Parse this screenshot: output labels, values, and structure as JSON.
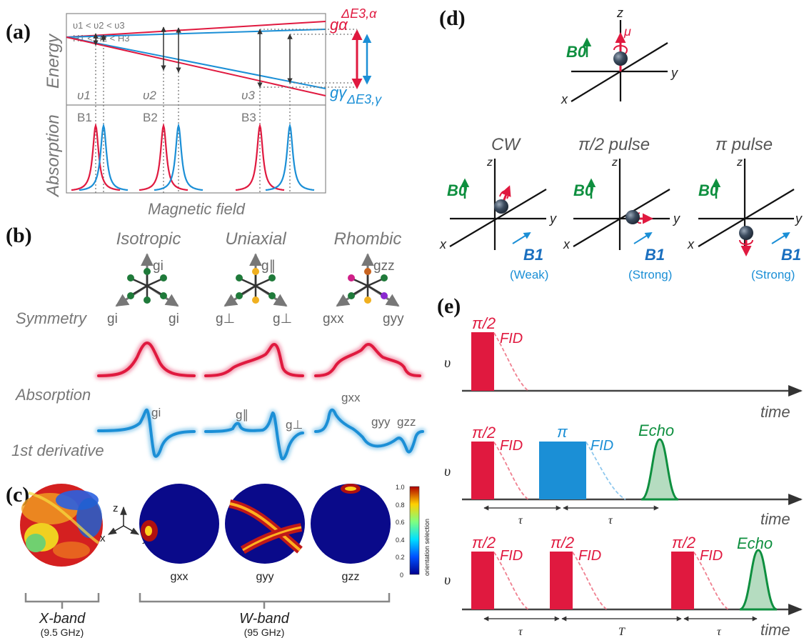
{
  "panel_labels": {
    "a": "(a)",
    "b": "(b)",
    "c": "(c)",
    "d": "(d)",
    "e": "(e)"
  },
  "colors": {
    "red": "#e0193f",
    "blue": "#1b8fd6",
    "green": "#0e8f3f",
    "gray": "#777777",
    "dark_blue": "#1a6fbf"
  },
  "panel_a": {
    "cond_freq": "υ1 < υ2 < υ3",
    "cond_field": "H1 < H2 < H3",
    "ylabel_top": "Energy",
    "ylabel_bottom": "Absorption",
    "xlabel": "Magnetic field",
    "g_alpha": "gα",
    "g_gamma": "gγ",
    "dE_alpha": "ΔE3,α",
    "dE_gamma": "ΔE3,γ",
    "freqs": [
      "υ1",
      "υ2",
      "υ3"
    ],
    "fields": [
      "B1",
      "B2",
      "B3"
    ]
  },
  "panel_b": {
    "columns": [
      "Isotropic",
      "Uniaxial",
      "Rhombic"
    ],
    "rows": [
      "Symmetry",
      "Absorption",
      "1st derivative"
    ],
    "iso_axes": [
      "gi",
      "gi",
      "gi"
    ],
    "uni_axes": [
      "g∥",
      "g⊥",
      "g⊥"
    ],
    "rho_axes": [
      "gzz",
      "gxx",
      "gyy"
    ],
    "deriv_labels": [
      "gi",
      "g∥",
      "g⊥",
      "gxx",
      "gyy",
      "gzz"
    ]
  },
  "panel_c": {
    "band_x": "X-band",
    "band_x_freq": "(9.5 GHz)",
    "band_w": "W-band",
    "band_w_freq": "(95 GHz)",
    "sphere_labels": [
      "gxx",
      "gyy",
      "gzz"
    ],
    "axes": [
      "z",
      "x",
      "y"
    ],
    "colorbar_title": "orientation selection",
    "colorbar_ticks": [
      "1.0",
      "0.8",
      "0.6",
      "0.4",
      "0.2",
      "0"
    ]
  },
  "panel_d": {
    "axes": [
      "z",
      "y",
      "x"
    ],
    "B0": "B0",
    "B1": "B1",
    "mu": "μ",
    "states": [
      {
        "title": "CW",
        "strength": "(Weak)"
      },
      {
        "title": "π/2 pulse",
        "strength": "(Strong)"
      },
      {
        "title": "π pulse",
        "strength": "(Strong)"
      }
    ]
  },
  "panel_e": {
    "ylabel": "υ",
    "xlabel": "time",
    "pi_half": "π/2",
    "pi": "π",
    "fid": "FID",
    "echo": "Echo",
    "tau": "τ",
    "T": "T"
  }
}
